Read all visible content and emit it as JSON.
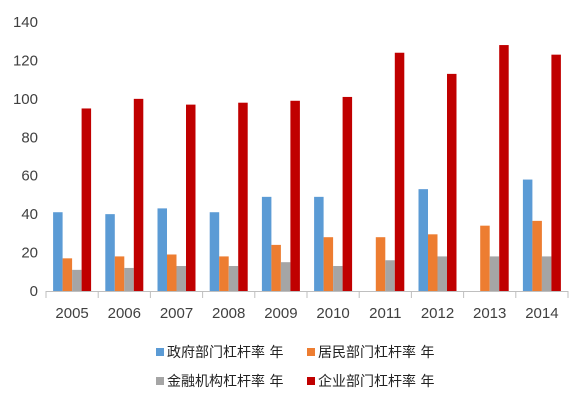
{
  "chart_data": {
    "type": "bar",
    "title": "",
    "xlabel": "",
    "ylabel": "",
    "categories": [
      "2005",
      "2006",
      "2007",
      "2008",
      "2009",
      "2010",
      "2011",
      "2012",
      "2013",
      "2014"
    ],
    "ylim": [
      0,
      140
    ],
    "yticks": [
      "0",
      "20",
      "40",
      "60",
      "80",
      "100",
      "120",
      "140"
    ],
    "grid": false,
    "legend_position": "bottom",
    "series": [
      {
        "name": "政府部门杠杆率 年",
        "color": "#5b9bd5",
        "values": [
          41,
          40,
          43,
          41,
          49,
          49,
          null,
          53,
          null,
          58
        ]
      },
      {
        "name": "居民部门杠杆率 年",
        "color": "#ed7d31",
        "values": [
          17,
          18,
          19,
          18,
          24,
          28,
          28,
          29.5,
          34,
          36.5
        ]
      },
      {
        "name": "金融机构杠杆率 年",
        "color": "#a5a5a5",
        "values": [
          11,
          12,
          13,
          13,
          15,
          13,
          16,
          18,
          18,
          18
        ]
      },
      {
        "name": "企业部门杠杆率 年",
        "color": "#c00000",
        "values": [
          95,
          100,
          97,
          98,
          99,
          101,
          124,
          113,
          128,
          123
        ]
      }
    ]
  }
}
